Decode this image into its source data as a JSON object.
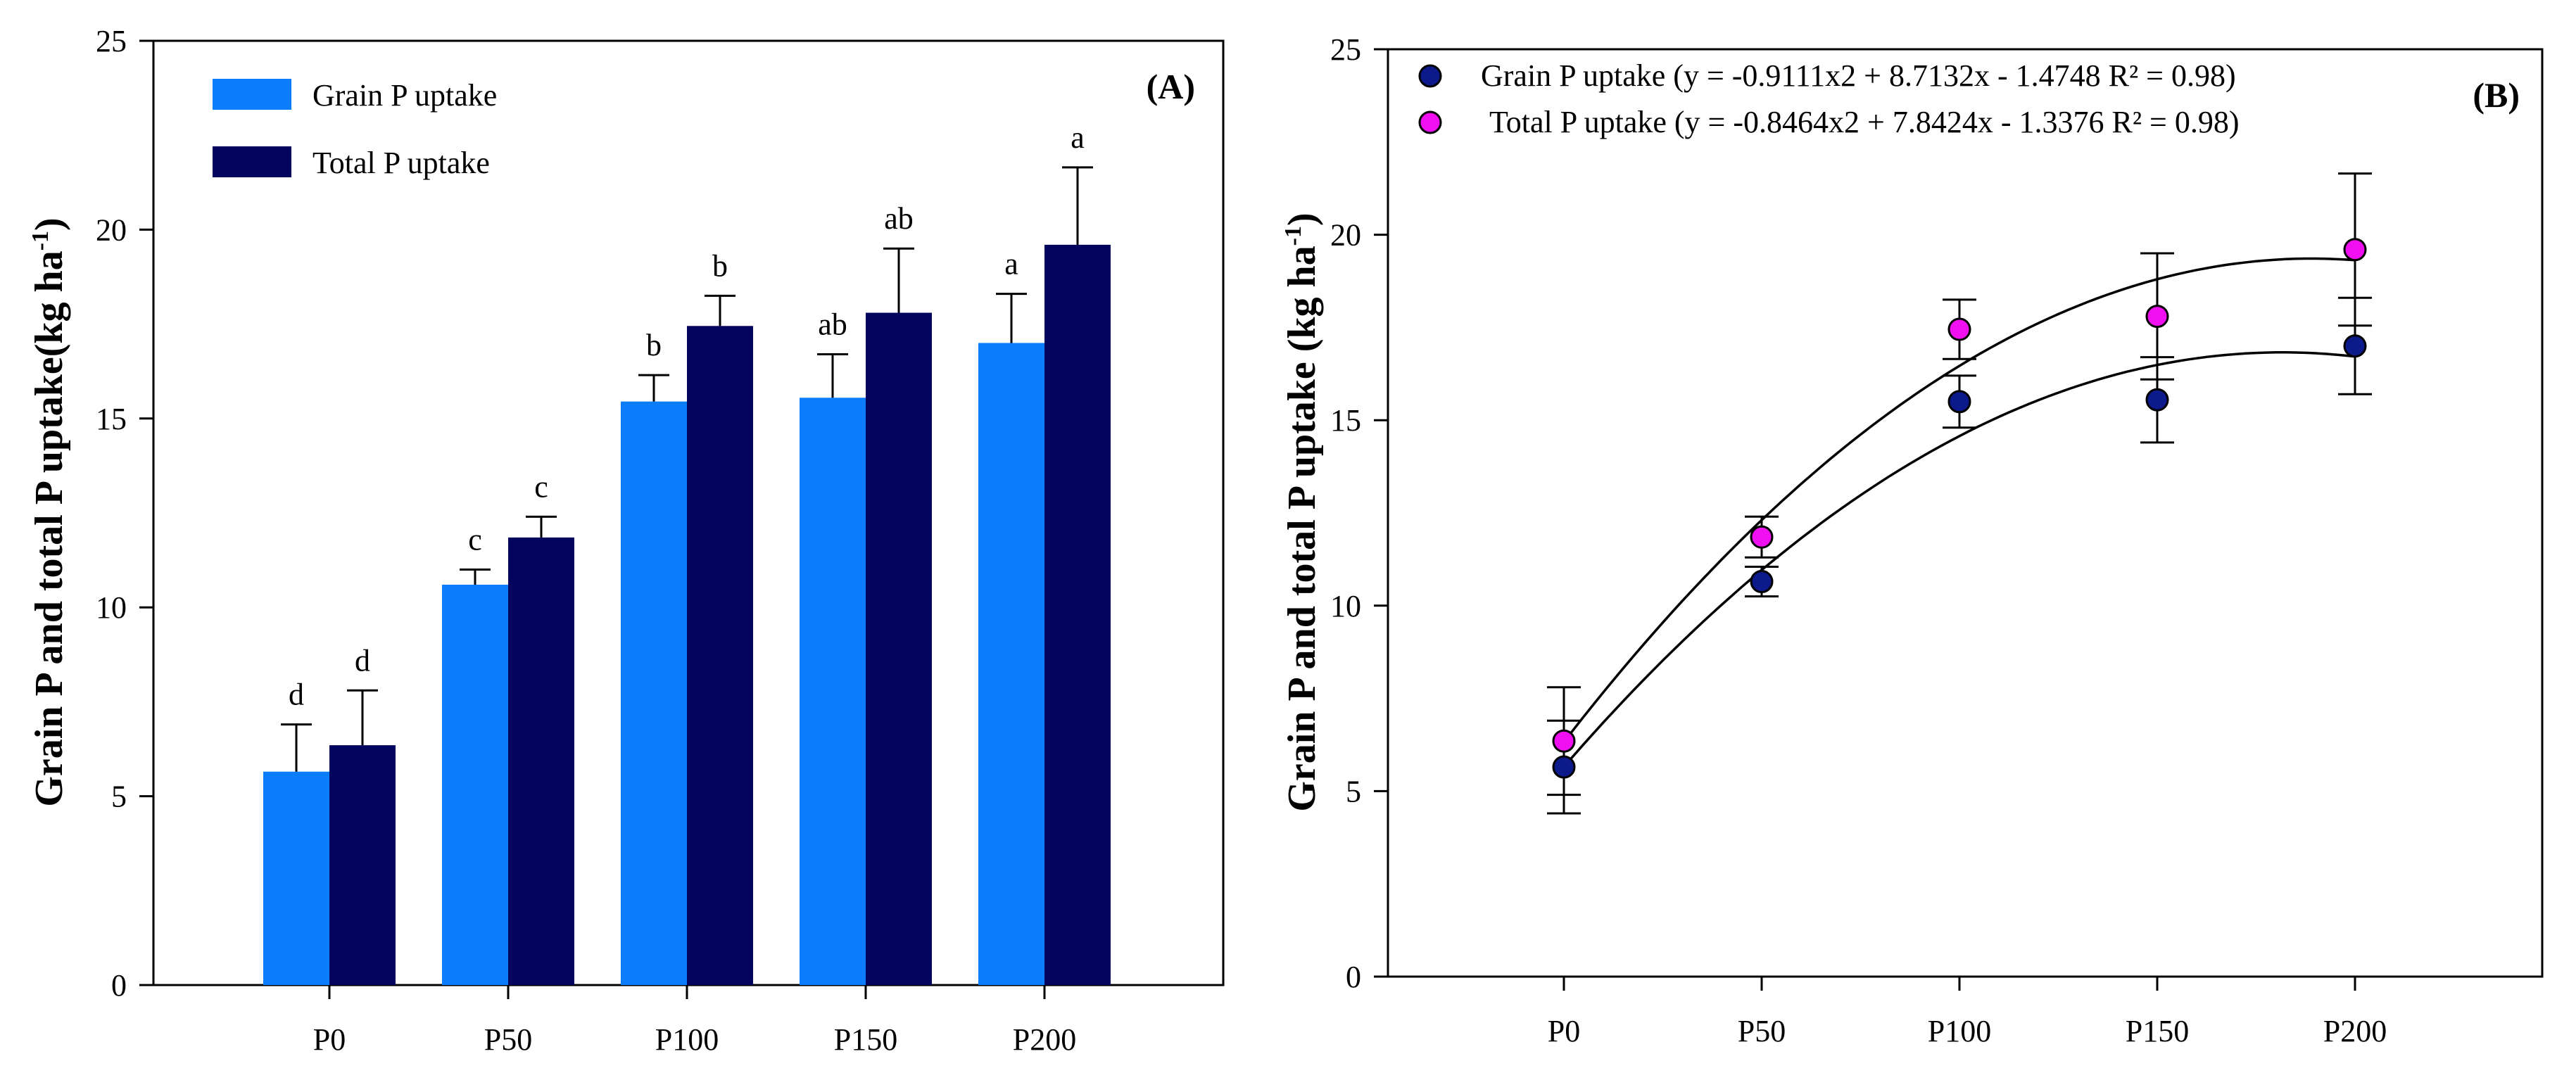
{
  "chart_data": [
    {
      "type": "bar",
      "panel_label": "(A)",
      "ylabel": "Grain P and total P uptake(kg ha",
      "ylabel_sup": "-1",
      "ylabel_close": ")",
      "categories": [
        "P0",
        "P50",
        "P100",
        "P150",
        "P200"
      ],
      "ylim": [
        0,
        25
      ],
      "yticks": [
        0,
        5,
        10,
        15,
        20,
        25
      ],
      "legend_position": "top-left",
      "series": [
        {
          "name": "Grain P uptake",
          "color": "#0a7dfa",
          "values": [
            5.65,
            10.6,
            15.45,
            15.55,
            17.0
          ],
          "errors": [
            1.25,
            0.4,
            0.7,
            1.15,
            1.3
          ],
          "letters": [
            "d",
            "c",
            "b",
            "ab",
            "a"
          ]
        },
        {
          "name": "Total P uptake",
          "color": "#03045e",
          "values": [
            6.35,
            11.85,
            17.45,
            17.8,
            19.6
          ],
          "errors": [
            1.45,
            0.55,
            0.8,
            1.7,
            2.05
          ],
          "letters": [
            "d",
            "c",
            "b",
            "ab",
            "a"
          ]
        }
      ]
    },
    {
      "type": "scatter",
      "panel_label": "(B)",
      "ylabel": "Grain P and total P uptake  (kg ha",
      "ylabel_sup": "-1",
      "ylabel_close": ")",
      "categories": [
        "P0",
        "P50",
        "P100",
        "P150",
        "P200"
      ],
      "ylim": [
        0,
        25
      ],
      "yticks": [
        0,
        5,
        10,
        15,
        20,
        25
      ],
      "legend_position": "top-left",
      "series": [
        {
          "name": "Grain P uptake (y = -0.9111x2 + 8.7132x - 1.4748 R² = 0.98)",
          "color": "#0d1a8c",
          "values": [
            5.65,
            10.65,
            15.5,
            15.55,
            17.0
          ],
          "errors": [
            1.25,
            0.4,
            0.7,
            1.15,
            1.3
          ],
          "fit": {
            "a": -0.9111,
            "b": 8.7132,
            "c": -1.4748
          }
        },
        {
          "name": "Total P uptake (y = -0.8464x2 + 7.8424x - 1.3376 R² = 0.98)",
          "color": "#f00ff0",
          "values": [
            6.35,
            11.85,
            17.45,
            17.8,
            19.6
          ],
          "errors": [
            1.45,
            0.55,
            0.8,
            1.7,
            2.05
          ],
          "fit": {
            "a": -0.8464,
            "b": 7.8424,
            "c": -1.3376
          }
        }
      ]
    }
  ]
}
